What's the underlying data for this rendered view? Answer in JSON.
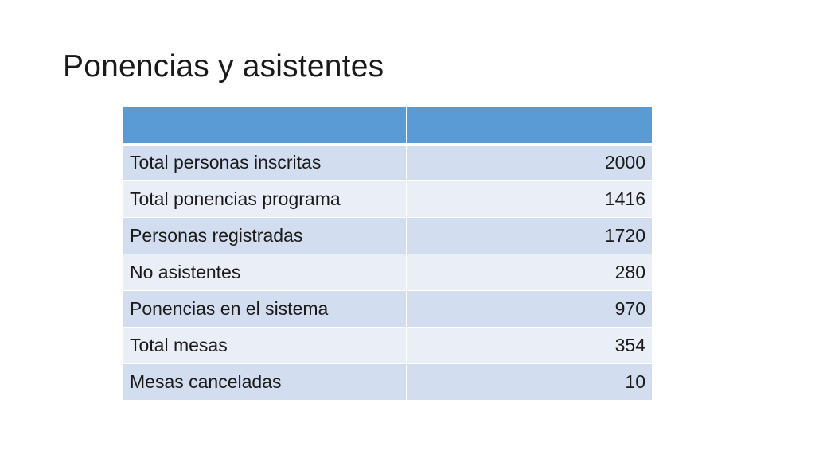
{
  "slide": {
    "title": "Ponencias y asistentes"
  },
  "table": {
    "headers": [
      "",
      ""
    ],
    "rows": [
      {
        "label": "Total personas inscritas",
        "value": "2000"
      },
      {
        "label": "Total ponencias programa",
        "value": "1416"
      },
      {
        "label": "Personas registradas",
        "value": "1720"
      },
      {
        "label": "No asistentes",
        "value": "280"
      },
      {
        "label": "Ponencias en el sistema",
        "value": "970"
      },
      {
        "label": "Total mesas",
        "value": "354"
      },
      {
        "label": "Mesas canceladas",
        "value": "10"
      }
    ]
  },
  "colors": {
    "header_fill": "#5b9bd5",
    "band_dark": "#d2deef",
    "band_light": "#eaeff7"
  }
}
